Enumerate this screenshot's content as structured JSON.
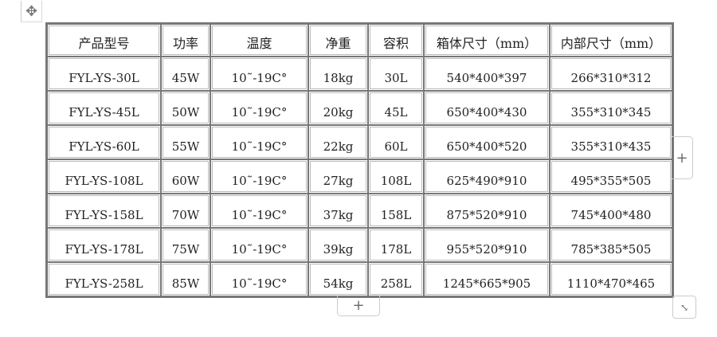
{
  "table": {
    "headers": [
      "产品型号",
      "功率",
      "温度",
      "净重",
      "容积",
      "箱体尺寸（mm）",
      "内部尺寸（mm）"
    ],
    "rows": [
      [
        "FYL-YS-30L",
        "45W",
        "10˜-19C°",
        "18kg",
        "30L",
        "540*400*397",
        "266*310*312"
      ],
      [
        "FYL-YS-45L",
        "50W",
        "10˜-19C°",
        "20kg",
        "45L",
        "650*400*430",
        "355*310*345"
      ],
      [
        "FYL-YS-60L",
        "55W",
        "10˜-19C°",
        "22kg",
        "60L",
        "650*400*520",
        "355*310*435"
      ],
      [
        "FYL-YS-108L",
        "60W",
        "10˜-19C°",
        "27kg",
        "108L",
        "625*490*910",
        "495*355*505"
      ],
      [
        "FYL-YS-158L",
        "70W",
        "10˜-19C°",
        "37kg",
        "158L",
        "875*520*910",
        "745*400*480"
      ],
      [
        "FYL-YS-178L",
        "75W",
        "10˜-19C°",
        "39kg",
        "178L",
        "955*520*910",
        "785*385*505"
      ],
      [
        "FYL-YS-258L",
        "85W",
        "10˜-19C°",
        "54kg",
        "258L",
        "1245*665*905",
        "1110*470*465"
      ]
    ]
  },
  "controls": {
    "move_icon": "move-arrows-icon",
    "add_column_label": "+",
    "add_row_label": "+",
    "resize_icon": "resize-diagonal-icon"
  }
}
